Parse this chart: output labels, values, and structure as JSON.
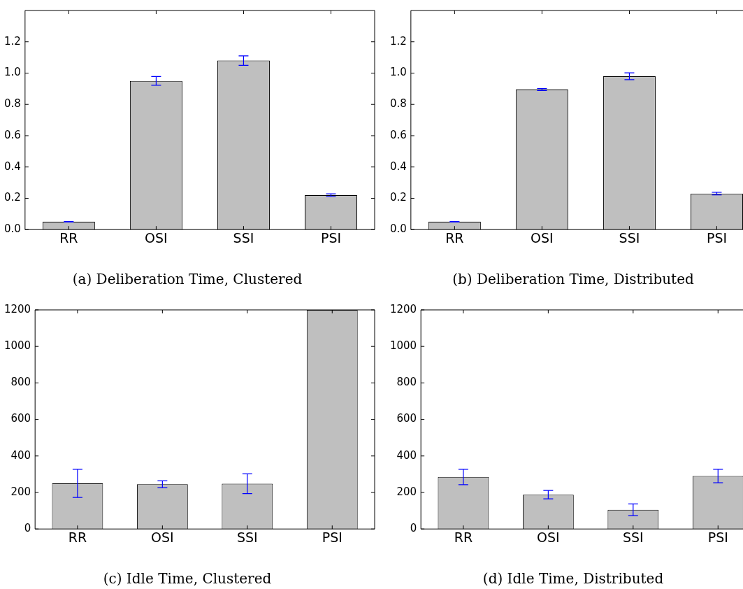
{
  "chart_data": [
    {
      "type": "bar",
      "title": "(a) Deliberation Time, Clustered",
      "categories": [
        "RR",
        "OSI",
        "SSI",
        "PSI"
      ],
      "values": [
        0.05,
        0.95,
        1.08,
        0.22
      ],
      "errors": [
        0.002,
        0.028,
        0.03,
        0.008
      ],
      "color": "#bfbfbf",
      "ylim": [
        0,
        1.4
      ],
      "yticks": [
        {
          "value": 0,
          "label": "0.0"
        },
        {
          "value": 0.2,
          "label": "0.2"
        },
        {
          "value": 0.4,
          "label": "0.4"
        },
        {
          "value": 0.6,
          "label": "0.6"
        },
        {
          "value": 0.8,
          "label": "0.8"
        },
        {
          "value": 1,
          "label": "1.0"
        },
        {
          "value": 1.2,
          "label": "1.2"
        }
      ],
      "grid": false
    },
    {
      "type": "bar",
      "title": "(b) Deliberation Time, Distributed",
      "categories": [
        "RR",
        "OSI",
        "SSI",
        "PSI"
      ],
      "values": [
        0.05,
        0.895,
        0.98,
        0.23
      ],
      "errors": [
        0.002,
        0.006,
        0.022,
        0.008
      ],
      "color": "#bfbfbf",
      "ylim": [
        0,
        1.4
      ],
      "yticks": [
        {
          "value": 0,
          "label": "0.0"
        },
        {
          "value": 0.2,
          "label": "0.2"
        },
        {
          "value": 0.4,
          "label": "0.4"
        },
        {
          "value": 0.6,
          "label": "0.6"
        },
        {
          "value": 0.8,
          "label": "0.8"
        },
        {
          "value": 1,
          "label": "1.0"
        },
        {
          "value": 1.2,
          "label": "1.2"
        }
      ],
      "grid": false
    },
    {
      "type": "bar",
      "title": "(c) Idle Time, Clustered",
      "categories": [
        "RR",
        "OSI",
        "SSI",
        "PSI"
      ],
      "values": [
        250,
        245,
        248,
        1200
      ],
      "errors": [
        77,
        19,
        54,
        null
      ],
      "color": "#bfbfbf",
      "ylim": [
        0,
        1200
      ],
      "yticks": [
        0,
        200,
        400,
        600,
        800,
        1000,
        1200
      ],
      "grid": false
    },
    {
      "type": "bar",
      "title": "(d) Idle Time, Distributed",
      "categories": [
        "RR",
        "OSI",
        "SSI",
        "PSI"
      ],
      "values": [
        285,
        188,
        105,
        290
      ],
      "errors": [
        42,
        23,
        32,
        37
      ],
      "color": "#bfbfbf",
      "ylim": [
        0,
        1200
      ],
      "yticks": [
        0,
        200,
        400,
        600,
        800,
        1000,
        1200
      ],
      "grid": false
    }
  ]
}
